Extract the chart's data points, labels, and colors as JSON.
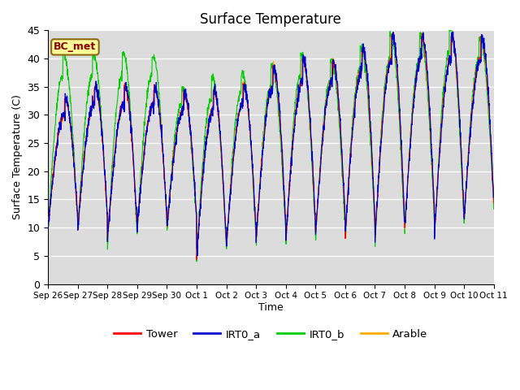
{
  "title": "Surface Temperature",
  "ylabel": "Surface Temperature (C)",
  "xlabel": "Time",
  "annotation": "BC_met",
  "ylim": [
    0,
    45
  ],
  "plot_bg": "#dcdcdc",
  "fig_bg": "#ffffff",
  "series_colors": {
    "Tower": "#ff0000",
    "IRT0_a": "#0000cc",
    "IRT0_b": "#00cc00",
    "Arable": "#ffaa00"
  },
  "legend_entries": [
    "Tower",
    "IRT0_a",
    "IRT0_b",
    "Arable"
  ],
  "tick_labels": [
    "Sep 26",
    "Sep 27",
    "Sep 28",
    "Sep 29",
    "Sep 30",
    "Oct 1",
    "Oct 2",
    "Oct 3",
    "Oct 4",
    "Oct 5",
    "Oct 6",
    "Oct 7",
    "Oct 8",
    "Oct 9",
    "Oct 10",
    "Oct 11"
  ],
  "yticks": [
    0,
    5,
    10,
    15,
    20,
    25,
    30,
    35,
    40,
    45
  ],
  "linewidth": 0.8,
  "n_days": 15,
  "pts_per_day": 144,
  "day_peaks_base": [
    30,
    32,
    32,
    32,
    31,
    31,
    32,
    35,
    36,
    36,
    38,
    40,
    40,
    40,
    40
  ],
  "day_peaks_irt0b": [
    37,
    37,
    37,
    37,
    32,
    33,
    34,
    35,
    37,
    36,
    38,
    40,
    40,
    41,
    40
  ],
  "day_mins_base": [
    10,
    10,
    8,
    10,
    10,
    5,
    7,
    8,
    8,
    9,
    9,
    8,
    10,
    9,
    12
  ],
  "day_mins_irt0b": [
    9.5,
    9.5,
    6.5,
    9.5,
    9.5,
    4.5,
    6,
    7,
    7,
    8,
    8,
    7,
    9,
    8,
    11
  ]
}
